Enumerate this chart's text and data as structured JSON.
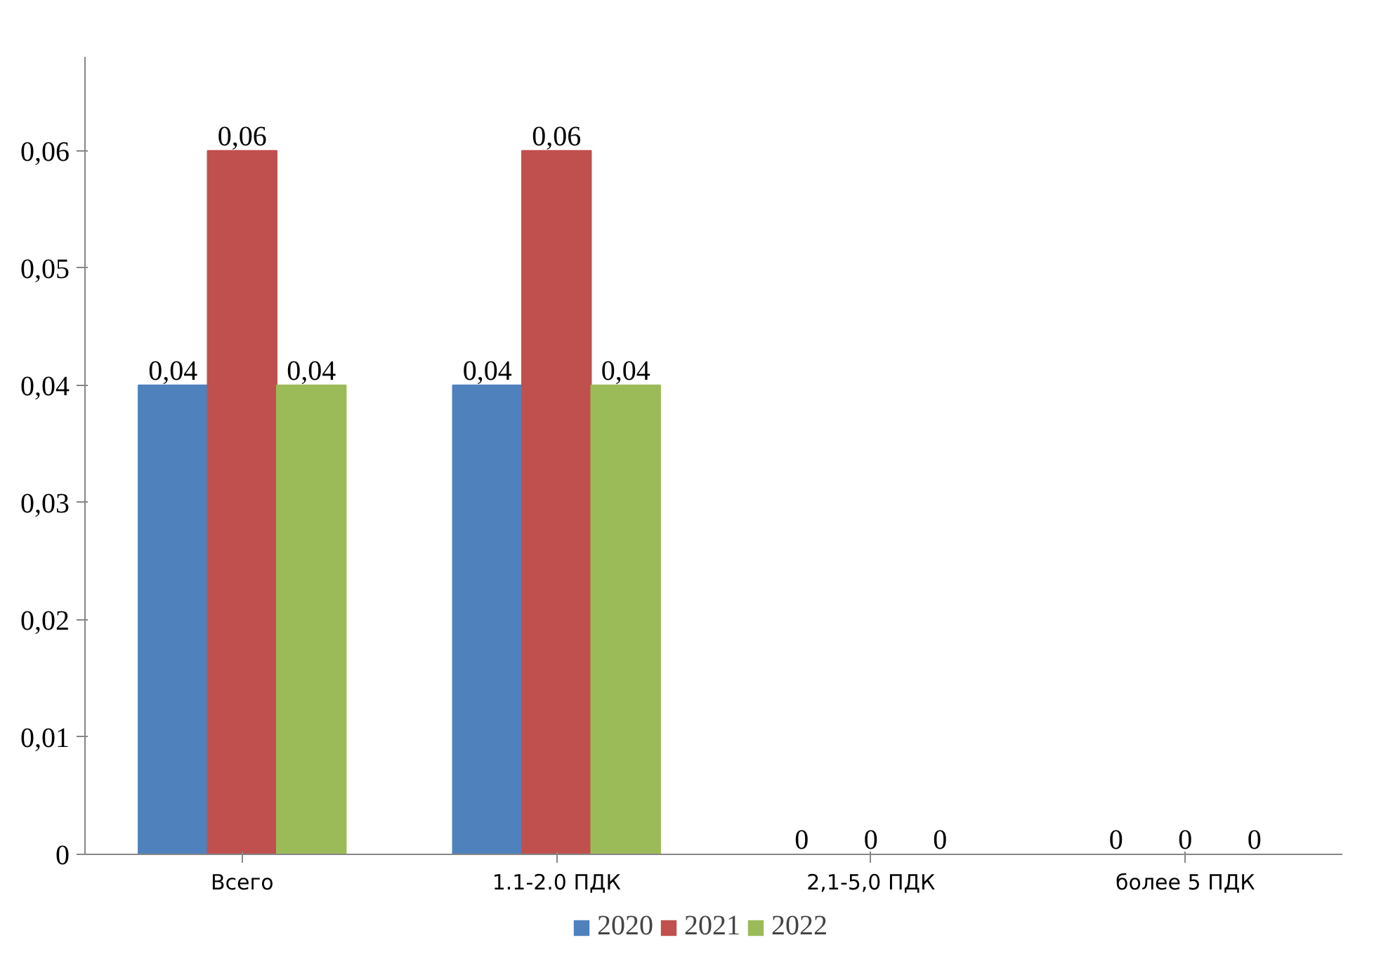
{
  "chart_data": {
    "type": "bar",
    "categories": [
      "Всего",
      "1.1-2.0 ПДК",
      "2,1-5,0 ПДК",
      "более 5 ПДК"
    ],
    "series": [
      {
        "name": "2020",
        "color": "#4f81bd",
        "values": [
          0.04,
          0.04,
          0,
          0
        ],
        "value_labels": [
          "0,04",
          "0,04",
          "0",
          "0"
        ]
      },
      {
        "name": "2021",
        "color": "#c0504d",
        "values": [
          0.06,
          0.06,
          0,
          0
        ],
        "value_labels": [
          "0,06",
          "0,06",
          "0",
          "0"
        ]
      },
      {
        "name": "2022",
        "color": "#9bbb59",
        "values": [
          0.04,
          0.04,
          0,
          0
        ],
        "value_labels": [
          "0,04",
          "0,04",
          "0",
          "0"
        ]
      }
    ],
    "ylim": [
      0,
      0.068
    ],
    "yticks": [
      0,
      {
        "value": 0.01,
        "label": "0,01"
      },
      {
        "value": 0.02,
        "label": "0,02"
      },
      {
        "value": 0.03,
        "label": "0,03"
      },
      {
        "value": 0.04,
        "label": "0,04"
      },
      {
        "value": 0.05,
        "label": "0,05"
      },
      {
        "value": 0.06,
        "label": "0,06"
      }
    ],
    "grid": false,
    "legend": "bottom"
  }
}
